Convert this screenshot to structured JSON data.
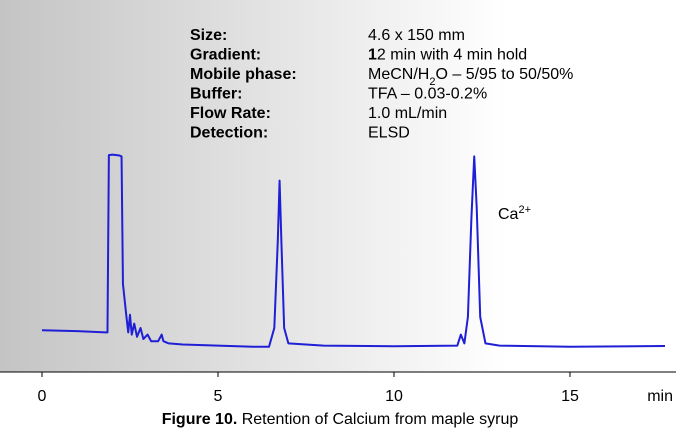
{
  "chart_data": {
    "type": "line",
    "info": [
      {
        "label": "Size:",
        "value": [
          "4.6 x 150 mm"
        ]
      },
      {
        "label": "Gradient:",
        "value": [
          "1",
          "2 min with 4 min hold"
        ]
      },
      {
        "label": "Mobile phase:",
        "value": [
          "MeCN/H",
          "2",
          "O – 5/95 to 50/50%"
        ]
      },
      {
        "label": "Buffer:",
        "value": [
          "TFA – 0.03-0.2%"
        ]
      },
      {
        "label": "Flow Rate:",
        "value": [
          "1.0 mL/min"
        ]
      },
      {
        "label": "Detection:",
        "value": [
          "ELSD"
        ]
      }
    ],
    "annotation": [
      "Ca",
      "2+"
    ],
    "caption": [
      "Figure 10.",
      " Retention of Calcium from maple syrup"
    ],
    "x_label": "min",
    "x": [
      0,
      1,
      1.8,
      1.86,
      1.9,
      2.0,
      2.2,
      2.26,
      2.3,
      2.4,
      2.45,
      2.5,
      2.55,
      2.62,
      2.7,
      2.8,
      2.88,
      3.0,
      3.1,
      3.3,
      3.4,
      3.45,
      3.6,
      4,
      5,
      6,
      6.45,
      6.6,
      6.7,
      6.75,
      6.8,
      6.88,
      7.0,
      8,
      10,
      11.8,
      11.9,
      12.0,
      12.1,
      12.2,
      12.28,
      12.35,
      12.45,
      12.6,
      13,
      15,
      17.7
    ],
    "values": [
      19,
      18.6,
      18,
      18,
      98.6,
      98.8,
      98.4,
      98,
      40,
      25,
      18,
      26,
      17,
      22,
      16,
      20,
      15,
      17,
      14,
      14,
      17,
      14,
      13,
      12.5,
      12,
      11.5,
      11.5,
      20,
      60,
      87,
      60,
      20,
      13,
      12,
      11.7,
      12,
      17,
      13,
      25,
      70,
      98,
      75,
      25,
      13,
      12,
      11.5,
      11.8
    ],
    "color": "#1f1fd6",
    "xlim": [
      0,
      17.7
    ],
    "xticks": [
      0,
      5,
      10,
      15
    ],
    "ylim": [
      0,
      100
    ]
  }
}
